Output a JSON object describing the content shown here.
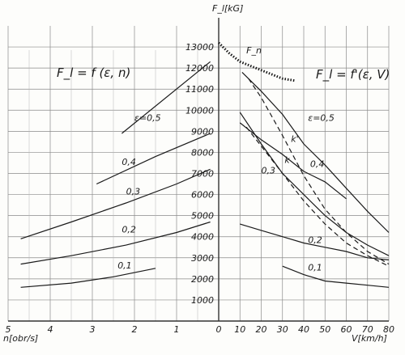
{
  "chart_data": {
    "type": "line",
    "title_left": "F_l = f (ε, n)",
    "title_right": "F_l = f'(ε, V)",
    "y_label": "F_l[kG]",
    "x_left_label": "n[obr/s]",
    "x_right_label": "V[km/h]",
    "y_ticks": [
      "1000",
      "2000",
      "3000",
      "4000",
      "5000",
      "6000",
      "7000",
      "8000",
      "9000",
      "10000",
      "11000",
      "12000",
      "13000"
    ],
    "x_left_ticks": [
      "5",
      "4",
      "3",
      "2",
      "1",
      "0"
    ],
    "x_right_ticks": [
      "10",
      "20",
      "30",
      "40",
      "50",
      "60",
      "70",
      "80"
    ],
    "ylim": [
      0,
      14000
    ],
    "grid": true,
    "left_series": [
      {
        "name": "ε=0,5",
        "points": [
          [
            2.3,
            8900
          ],
          [
            0.2,
            12300
          ]
        ]
      },
      {
        "name": "0,4",
        "points": [
          [
            2.9,
            6500
          ],
          [
            1.5,
            7800
          ],
          [
            0.2,
            8900
          ]
        ]
      },
      {
        "name": "0,3",
        "points": [
          [
            4.7,
            3900
          ],
          [
            3.5,
            4700
          ],
          [
            2.2,
            5600
          ],
          [
            1.0,
            6500
          ],
          [
            0.2,
            7200
          ]
        ]
      },
      {
        "name": "0,2",
        "points": [
          [
            4.7,
            2700
          ],
          [
            3.5,
            3100
          ],
          [
            2.2,
            3600
          ],
          [
            1.0,
            4200
          ],
          [
            0.2,
            4700
          ]
        ]
      },
      {
        "name": "0,1",
        "points": [
          [
            4.7,
            1600
          ],
          [
            3.5,
            1800
          ],
          [
            2.5,
            2100
          ],
          [
            1.5,
            2500
          ]
        ]
      }
    ],
    "right_series": [
      {
        "name": "F_n",
        "style": "dotted",
        "points": [
          [
            0,
            13200
          ],
          [
            5,
            12700
          ],
          [
            10,
            12300
          ],
          [
            20,
            11900
          ],
          [
            30,
            11500
          ],
          [
            36,
            11400
          ]
        ]
      },
      {
        "name": "ε=0,5",
        "points": [
          [
            11,
            11800
          ],
          [
            20,
            10900
          ],
          [
            30,
            9800
          ],
          [
            40,
            8400
          ],
          [
            50,
            7400
          ],
          [
            60,
            6300
          ],
          [
            70,
            5200
          ],
          [
            80,
            4200
          ]
        ]
      },
      {
        "name": "0,4",
        "points": [
          [
            10,
            9400
          ],
          [
            20,
            8600
          ],
          [
            30,
            7900
          ],
          [
            40,
            7100
          ],
          [
            50,
            6600
          ],
          [
            60,
            5800
          ]
        ]
      },
      {
        "name": "0,3",
        "points": [
          [
            10,
            9900
          ],
          [
            20,
            8400
          ],
          [
            30,
            7000
          ],
          [
            40,
            6000
          ],
          [
            50,
            5000
          ],
          [
            60,
            4200
          ],
          [
            70,
            3600
          ],
          [
            80,
            3100
          ]
        ]
      },
      {
        "name": "0,2",
        "points": [
          [
            10,
            4600
          ],
          [
            20,
            4300
          ],
          [
            30,
            4000
          ],
          [
            40,
            3700
          ],
          [
            50,
            3500
          ],
          [
            60,
            3300
          ],
          [
            70,
            3000
          ],
          [
            80,
            2900
          ]
        ]
      },
      {
        "name": "0,1",
        "points": [
          [
            30,
            2600
          ],
          [
            40,
            2200
          ],
          [
            50,
            1900
          ],
          [
            60,
            1800
          ],
          [
            70,
            1700
          ],
          [
            80,
            1600
          ]
        ]
      },
      {
        "name": "k'",
        "style": "dashed",
        "points": [
          [
            14,
            11500
          ],
          [
            20,
            10600
          ],
          [
            30,
            8800
          ],
          [
            40,
            6900
          ],
          [
            50,
            5300
          ],
          [
            60,
            4200
          ],
          [
            70,
            3300
          ],
          [
            80,
            2700
          ]
        ]
      },
      {
        "name": "k",
        "style": "dashed",
        "points": [
          [
            13,
            9200
          ],
          [
            20,
            8300
          ],
          [
            30,
            7000
          ],
          [
            40,
            5700
          ],
          [
            50,
            4600
          ],
          [
            60,
            3700
          ],
          [
            70,
            3100
          ],
          [
            80,
            2600
          ]
        ]
      }
    ]
  }
}
